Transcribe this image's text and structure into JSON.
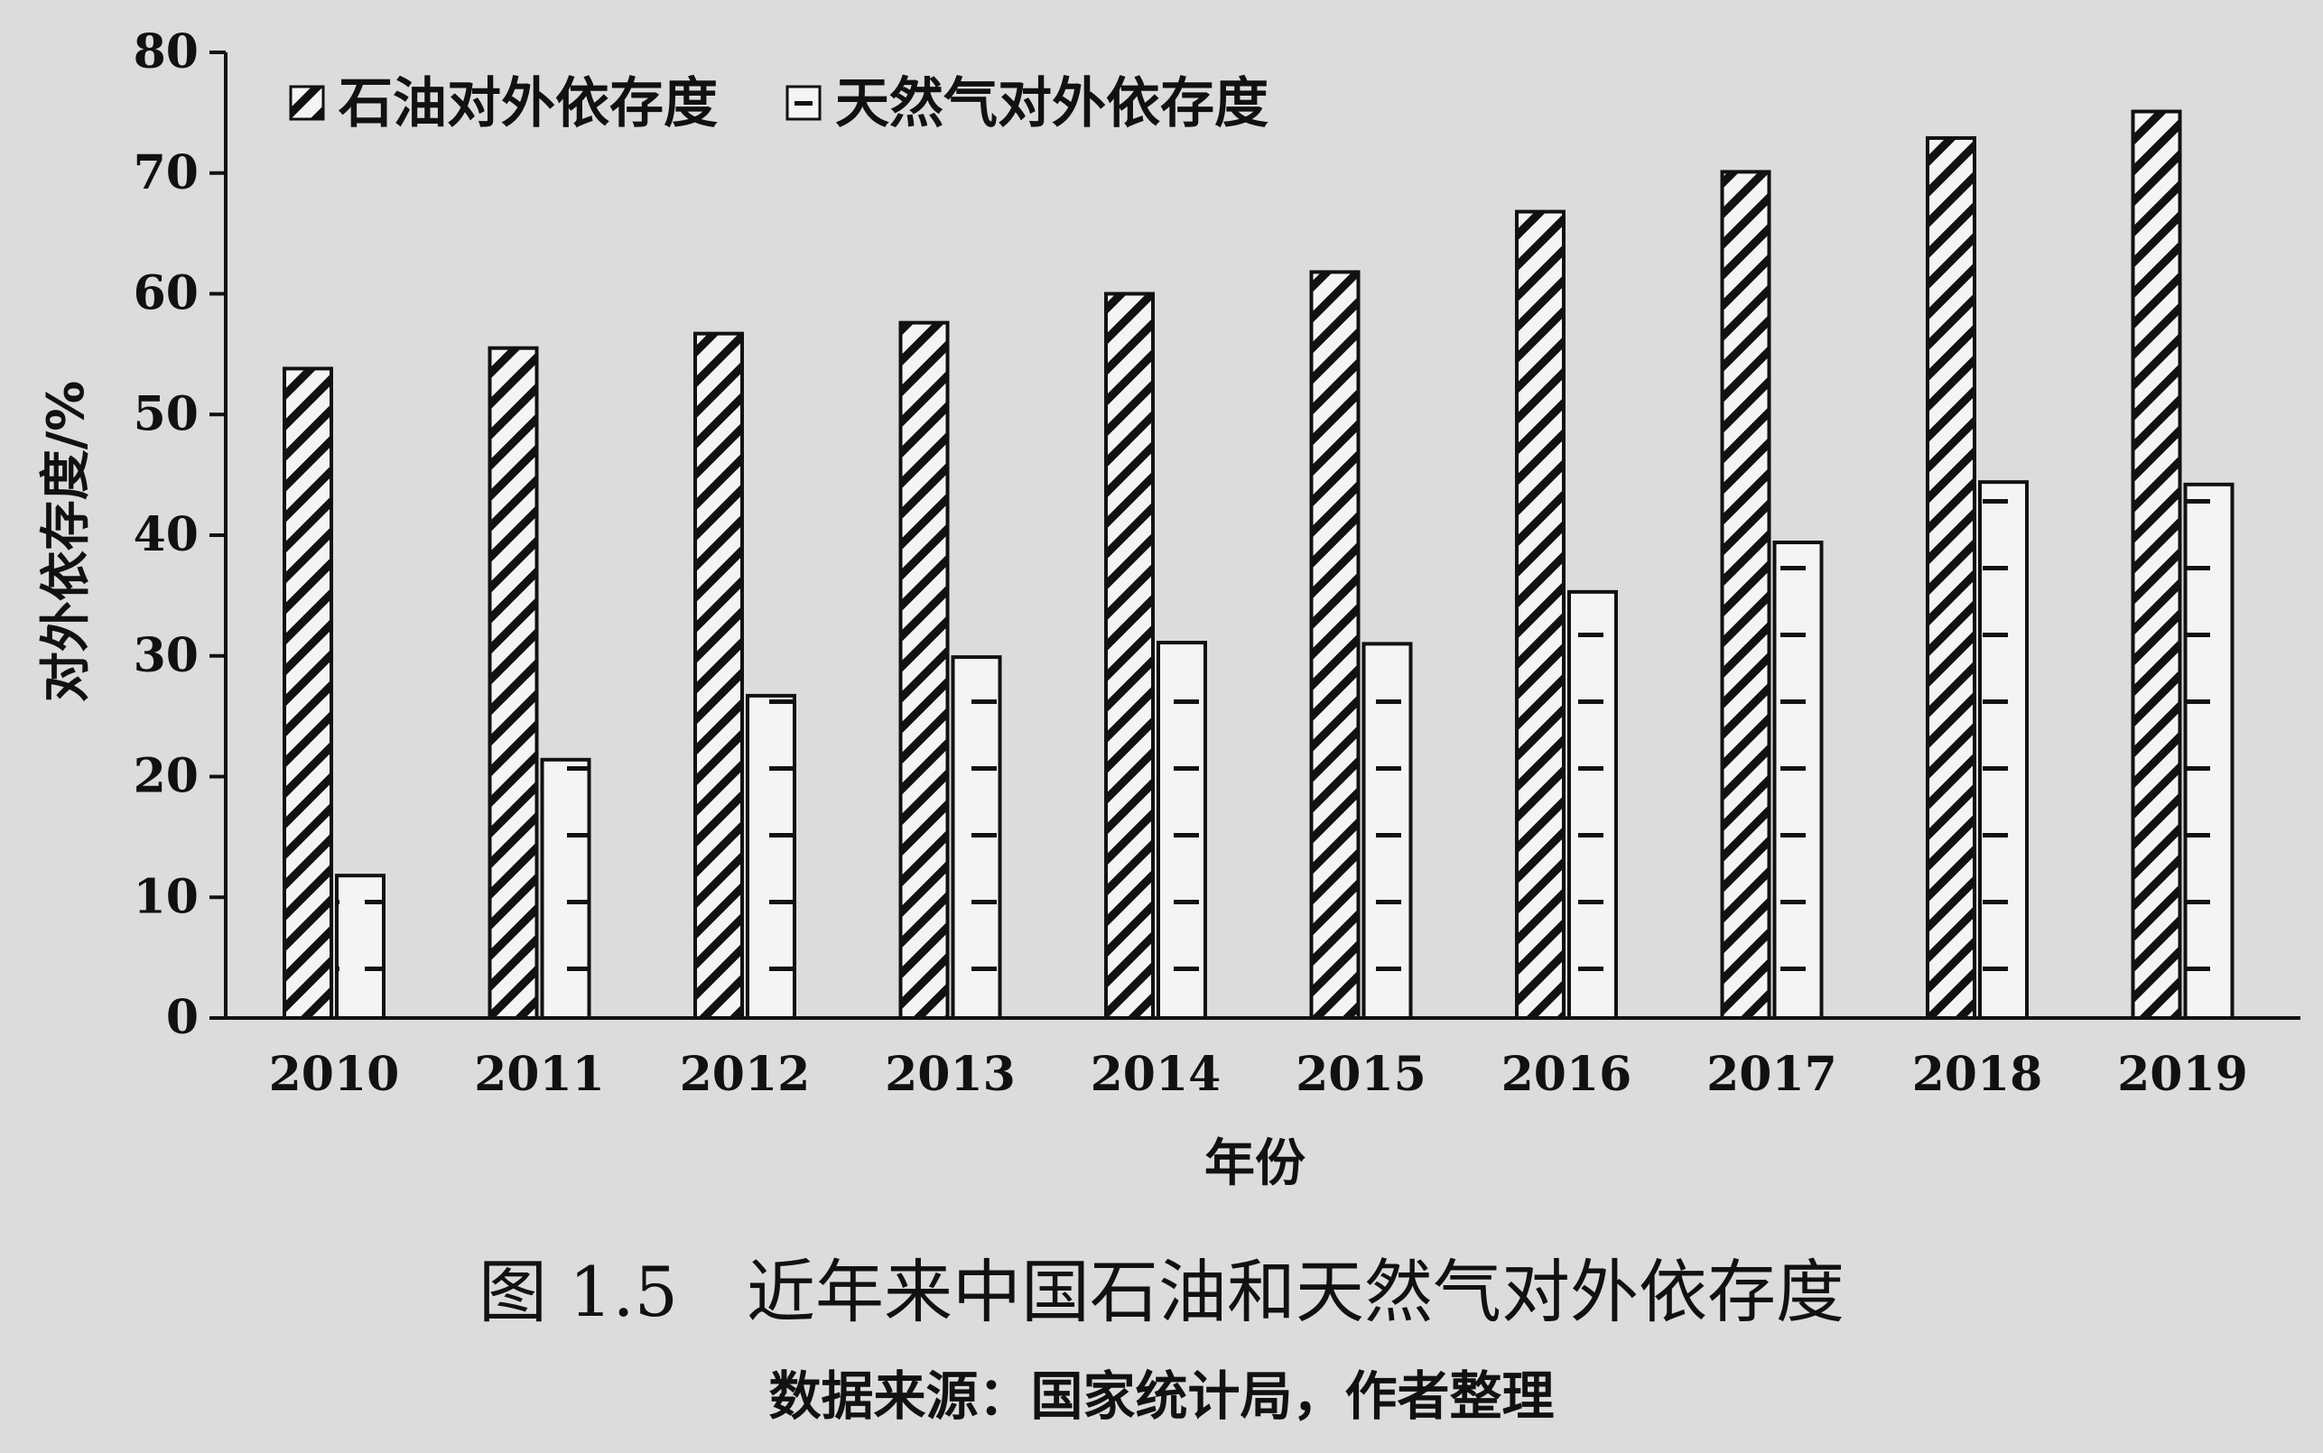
{
  "chart_data": {
    "type": "bar",
    "categories": [
      "2010",
      "2011",
      "2012",
      "2013",
      "2014",
      "2015",
      "2016",
      "2017",
      "2018",
      "2019"
    ],
    "series": [
      {
        "name": "石油对外依存度",
        "values": [
          53.8,
          55.5,
          56.7,
          57.6,
          60.0,
          61.8,
          66.8,
          70.1,
          72.9,
          75.1
        ],
        "pattern": "diagonal-hatch"
      },
      {
        "name": "天然气对外依存度",
        "values": [
          11.8,
          21.4,
          26.7,
          29.9,
          31.1,
          31.0,
          35.3,
          39.4,
          44.4,
          44.2
        ],
        "pattern": "horizontal-dash"
      }
    ],
    "yticks": [
      "0",
      "10",
      "20",
      "30",
      "40",
      "50",
      "60",
      "70",
      "80"
    ],
    "ylim": [
      0,
      80
    ],
    "xlabel": "年份",
    "ylabel": "对外依存度/%",
    "legend_position": "top-left",
    "grid": false,
    "colors": {
      "background": "#dcdcdc",
      "ink": "#111111",
      "bar_fill": "#f4f4f4"
    }
  },
  "caption": {
    "title": "图 1.5　近年来中国石油和天然气对外依存度",
    "source": "数据来源：国家统计局，作者整理"
  }
}
